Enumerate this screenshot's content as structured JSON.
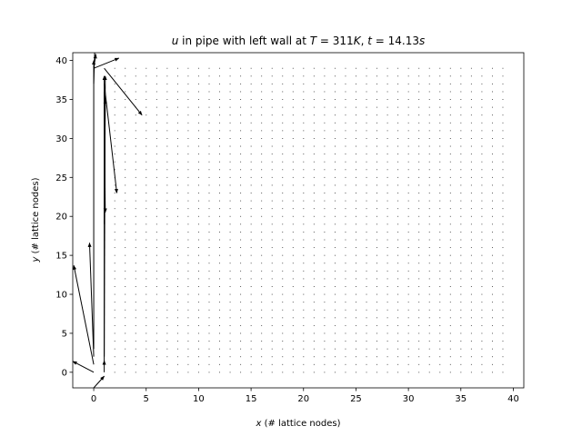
{
  "chart_data": {
    "type": "quiver",
    "title_prefix": "u",
    "title_mid": " in pipe with left wall at ",
    "title_T_sym": "T",
    "title_T_val": " = 311",
    "title_T_unit": "K",
    "title_sep": ", ",
    "title_t_sym": "t",
    "title_t_val": " = 14.13",
    "title_t_unit": "s",
    "xlabel_sym": "x",
    "xlabel_rest": " (# lattice nodes)",
    "ylabel_sym": "y",
    "ylabel_rest": " (# lattice nodes)",
    "xlim": [
      -2,
      41
    ],
    "ylim": [
      -2,
      41
    ],
    "xticks": [
      0,
      5,
      10,
      15,
      20,
      25,
      30,
      35,
      40
    ],
    "yticks": [
      0,
      5,
      10,
      15,
      20,
      25,
      30,
      35,
      40
    ],
    "grid": false,
    "interior_field": {
      "x_range": [
        2,
        39
      ],
      "y_range": [
        0,
        39
      ],
      "step": 1,
      "u": 0,
      "v": 0
    },
    "arrows": [
      {
        "x": 0,
        "y": 1,
        "u": -1.9,
        "v": 12.7
      },
      {
        "x": 0,
        "y": 0,
        "u": -2.0,
        "v": 1.4
      },
      {
        "x": 0,
        "y": 2,
        "u": -0.4,
        "v": 14.6
      },
      {
        "x": 0,
        "y": 3,
        "u": 0.0,
        "v": 37.0
      },
      {
        "x": 0,
        "y": 37,
        "u": 0.1,
        "v": 4.5
      },
      {
        "x": 0,
        "y": 39,
        "u": 0.2,
        "v": 1.8
      },
      {
        "x": 0,
        "y": 39,
        "u": 2.4,
        "v": 1.3
      },
      {
        "x": 1,
        "y": 0,
        "u": 0.0,
        "v": 1.5
      },
      {
        "x": 1,
        "y": 1,
        "u": 0.0,
        "v": 37.0
      },
      {
        "x": 1,
        "y": 2,
        "u": 0.1,
        "v": 36.0
      },
      {
        "x": 1,
        "y": 19,
        "u": 0.1,
        "v": 16.0
      },
      {
        "x": 1,
        "y": 36,
        "u": 0.1,
        "v": -15.5
      },
      {
        "x": 1,
        "y": 37,
        "u": 1.2,
        "v": -14.0
      },
      {
        "x": 1,
        "y": 39,
        "u": 3.6,
        "v": -6.0
      },
      {
        "x": 0,
        "y": -2,
        "u": 1.0,
        "v": 1.5
      }
    ]
  }
}
